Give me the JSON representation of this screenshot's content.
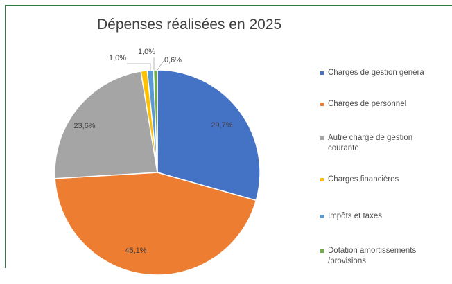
{
  "chart_data": {
    "type": "pie",
    "title": "Dépenses réalisées en 2025",
    "legend_position": "right",
    "slices": [
      {
        "name": "Charges de gestion généra",
        "value": 29.7,
        "label": "29,7%",
        "color": "#4472c4"
      },
      {
        "name": "Charges de personnel",
        "value": 45.1,
        "label": "45,1%",
        "color": "#ed7d31"
      },
      {
        "name": "Autre charge de gestion\ncourante",
        "value": 23.6,
        "label": "23,6%",
        "color": "#a5a5a5"
      },
      {
        "name": "Charges financières",
        "value": 1.0,
        "label": "1,0%",
        "color": "#ffc000"
      },
      {
        "name": "Impôts et taxes",
        "value": 1.0,
        "label": "1,0%",
        "color": "#5b9bd5"
      },
      {
        "name": "Dotation amortissements\n/provisions",
        "value": 0.6,
        "label": "0,6%",
        "color": "#70ad47"
      }
    ]
  }
}
